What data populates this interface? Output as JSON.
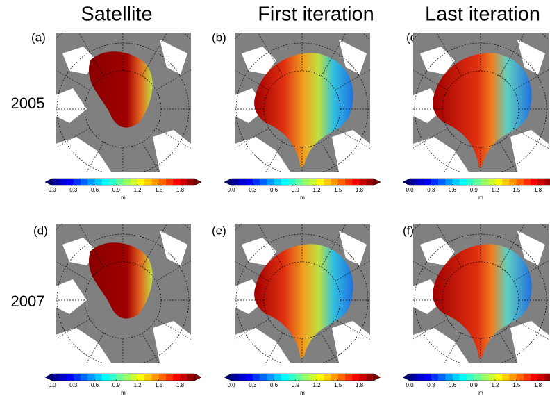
{
  "columns": [
    "Satellite",
    "First iteration",
    "Last iteration"
  ],
  "rows": [
    "2005",
    "2007"
  ],
  "panels": [
    "(a)",
    "(b)",
    "(c)",
    "(d)",
    "(e)",
    "(f)"
  ],
  "colorbar": {
    "range": [
      0,
      2
    ],
    "ticks": [
      {
        "value": 0,
        "label": "0.0"
      },
      {
        "value": 0.3,
        "label": "0.3"
      },
      {
        "value": 0.6,
        "label": "0.6"
      },
      {
        "value": 0.9,
        "label": "0.9"
      },
      {
        "value": 1.2,
        "label": "1.2"
      },
      {
        "value": 1.5,
        "label": "1.5"
      },
      {
        "value": 1.8,
        "label": "1.8"
      }
    ],
    "unit": "m"
  }
}
